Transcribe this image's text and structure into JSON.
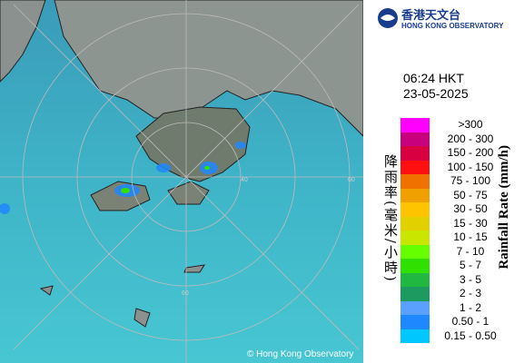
{
  "header": {
    "logo_zh": "香港天文台",
    "logo_en": "HONG KONG OBSERVATORY"
  },
  "timestamp": {
    "time": "06:24 HKT",
    "date": "23-05-2025"
  },
  "legend": {
    "title_zh": "降雨率(毫米/小時)",
    "title_en": "Rainfall Rate (mm/h)",
    "items": [
      {
        "label": ">300",
        "color": "#ff00ff"
      },
      {
        "label": "200 - 300",
        "color": "#c8007e"
      },
      {
        "label": "150 - 200",
        "color": "#d80040"
      },
      {
        "label": "100 - 150",
        "color": "#ff1010"
      },
      {
        "label": "75 - 100",
        "color": "#f07000"
      },
      {
        "label": "50 - 75",
        "color": "#f0a000"
      },
      {
        "label": "30 - 50",
        "color": "#ffc400"
      },
      {
        "label": "15 - 30",
        "color": "#e2d000"
      },
      {
        "label": "10 - 15",
        "color": "#c8e600"
      },
      {
        "label": "7 - 10",
        "color": "#66ff00"
      },
      {
        "label": "5 - 7",
        "color": "#30e000"
      },
      {
        "label": "3 - 5",
        "color": "#20b840"
      },
      {
        "label": "2 - 3",
        "color": "#1c9a60"
      },
      {
        "label": "1 - 2",
        "color": "#5aa0ff"
      },
      {
        "label": "0.50 - 1",
        "color": "#1e88ff"
      },
      {
        "label": "0.15 - 0.50",
        "color": "#00c8ff"
      }
    ]
  },
  "map": {
    "ring_labels": [
      "60",
      "60",
      "40"
    ],
    "copyright": "© Hong Kong Observatory"
  }
}
